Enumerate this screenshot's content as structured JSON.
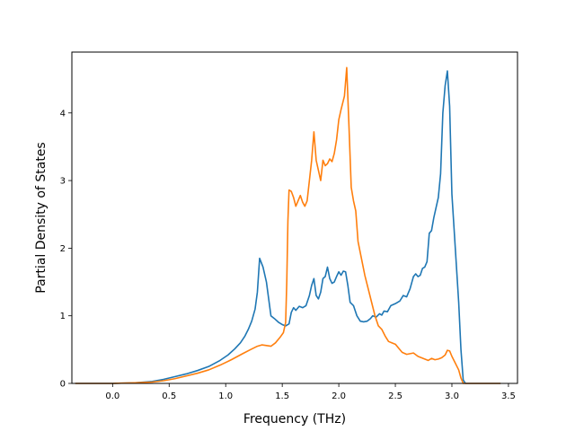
{
  "chart_data": {
    "type": "line",
    "xlabel": "Frequency (THz)",
    "ylabel": "Partial Density of States",
    "xlim": [
      -0.36,
      3.58
    ],
    "ylim": [
      0,
      4.9
    ],
    "xticks": [
      0.0,
      0.5,
      1.0,
      1.5,
      2.0,
      2.5,
      3.0,
      3.5
    ],
    "xtick_labels": [
      "0.0",
      "0.5",
      "1.0",
      "1.5",
      "2.0",
      "2.5",
      "3.0",
      "3.5"
    ],
    "yticks": [
      0,
      1,
      2,
      3,
      4
    ],
    "ytick_labels": [
      "0",
      "1",
      "2",
      "3",
      "4"
    ],
    "grid": false,
    "legend": "none",
    "series": [
      {
        "color": "#1f77b4",
        "points": [
          [
            -0.33,
            0.0
          ],
          [
            0.0,
            0.0
          ],
          [
            0.2,
            0.01
          ],
          [
            0.35,
            0.03
          ],
          [
            0.45,
            0.06
          ],
          [
            0.55,
            0.1
          ],
          [
            0.65,
            0.14
          ],
          [
            0.75,
            0.19
          ],
          [
            0.85,
            0.25
          ],
          [
            0.95,
            0.34
          ],
          [
            1.02,
            0.42
          ],
          [
            1.08,
            0.51
          ],
          [
            1.13,
            0.6
          ],
          [
            1.17,
            0.7
          ],
          [
            1.2,
            0.8
          ],
          [
            1.23,
            0.92
          ],
          [
            1.26,
            1.1
          ],
          [
            1.28,
            1.35
          ],
          [
            1.3,
            1.85
          ],
          [
            1.33,
            1.72
          ],
          [
            1.36,
            1.5
          ],
          [
            1.38,
            1.25
          ],
          [
            1.4,
            1.0
          ],
          [
            1.43,
            0.96
          ],
          [
            1.47,
            0.9
          ],
          [
            1.5,
            0.87
          ],
          [
            1.53,
            0.85
          ],
          [
            1.56,
            0.88
          ],
          [
            1.58,
            1.05
          ],
          [
            1.6,
            1.12
          ],
          [
            1.62,
            1.08
          ],
          [
            1.65,
            1.14
          ],
          [
            1.68,
            1.12
          ],
          [
            1.71,
            1.15
          ],
          [
            1.74,
            1.3
          ],
          [
            1.76,
            1.45
          ],
          [
            1.78,
            1.55
          ],
          [
            1.8,
            1.3
          ],
          [
            1.82,
            1.25
          ],
          [
            1.84,
            1.35
          ],
          [
            1.86,
            1.55
          ],
          [
            1.88,
            1.58
          ],
          [
            1.9,
            1.72
          ],
          [
            1.92,
            1.55
          ],
          [
            1.94,
            1.48
          ],
          [
            1.96,
            1.5
          ],
          [
            1.98,
            1.58
          ],
          [
            2.0,
            1.65
          ],
          [
            2.02,
            1.6
          ],
          [
            2.04,
            1.66
          ],
          [
            2.06,
            1.65
          ],
          [
            2.08,
            1.45
          ],
          [
            2.1,
            1.2
          ],
          [
            2.13,
            1.15
          ],
          [
            2.16,
            1.0
          ],
          [
            2.19,
            0.92
          ],
          [
            2.22,
            0.91
          ],
          [
            2.25,
            0.92
          ],
          [
            2.28,
            0.96
          ],
          [
            2.3,
            1.0
          ],
          [
            2.33,
            0.98
          ],
          [
            2.36,
            1.03
          ],
          [
            2.38,
            1.01
          ],
          [
            2.4,
            1.07
          ],
          [
            2.43,
            1.06
          ],
          [
            2.46,
            1.15
          ],
          [
            2.5,
            1.18
          ],
          [
            2.54,
            1.22
          ],
          [
            2.57,
            1.3
          ],
          [
            2.6,
            1.28
          ],
          [
            2.63,
            1.4
          ],
          [
            2.66,
            1.58
          ],
          [
            2.68,
            1.62
          ],
          [
            2.7,
            1.58
          ],
          [
            2.72,
            1.6
          ],
          [
            2.74,
            1.7
          ],
          [
            2.76,
            1.72
          ],
          [
            2.78,
            1.8
          ],
          [
            2.8,
            2.22
          ],
          [
            2.82,
            2.26
          ],
          [
            2.84,
            2.45
          ],
          [
            2.86,
            2.6
          ],
          [
            2.88,
            2.75
          ],
          [
            2.9,
            3.1
          ],
          [
            2.92,
            4.0
          ],
          [
            2.94,
            4.4
          ],
          [
            2.96,
            4.62
          ],
          [
            2.98,
            4.1
          ],
          [
            3.0,
            2.8
          ],
          [
            3.03,
            2.0
          ],
          [
            3.06,
            1.2
          ],
          [
            3.08,
            0.5
          ],
          [
            3.1,
            0.05
          ],
          [
            3.12,
            0.0
          ],
          [
            3.43,
            0.0
          ]
        ]
      },
      {
        "color": "#ff7f0e",
        "points": [
          [
            -0.33,
            0.0
          ],
          [
            0.0,
            0.0
          ],
          [
            0.2,
            0.01
          ],
          [
            0.35,
            0.02
          ],
          [
            0.45,
            0.04
          ],
          [
            0.55,
            0.07
          ],
          [
            0.65,
            0.11
          ],
          [
            0.75,
            0.15
          ],
          [
            0.85,
            0.2
          ],
          [
            0.95,
            0.27
          ],
          [
            1.05,
            0.35
          ],
          [
            1.15,
            0.44
          ],
          [
            1.22,
            0.5
          ],
          [
            1.28,
            0.55
          ],
          [
            1.32,
            0.57
          ],
          [
            1.36,
            0.56
          ],
          [
            1.4,
            0.55
          ],
          [
            1.44,
            0.6
          ],
          [
            1.48,
            0.68
          ],
          [
            1.51,
            0.75
          ],
          [
            1.53,
            0.9
          ],
          [
            1.54,
            1.5
          ],
          [
            1.55,
            2.4
          ],
          [
            1.56,
            2.86
          ],
          [
            1.58,
            2.84
          ],
          [
            1.6,
            2.75
          ],
          [
            1.62,
            2.62
          ],
          [
            1.64,
            2.7
          ],
          [
            1.66,
            2.78
          ],
          [
            1.68,
            2.68
          ],
          [
            1.7,
            2.62
          ],
          [
            1.72,
            2.7
          ],
          [
            1.74,
            3.0
          ],
          [
            1.76,
            3.3
          ],
          [
            1.78,
            3.72
          ],
          [
            1.8,
            3.3
          ],
          [
            1.82,
            3.15
          ],
          [
            1.84,
            3.0
          ],
          [
            1.86,
            3.3
          ],
          [
            1.88,
            3.22
          ],
          [
            1.9,
            3.25
          ],
          [
            1.92,
            3.32
          ],
          [
            1.94,
            3.28
          ],
          [
            1.96,
            3.4
          ],
          [
            1.98,
            3.6
          ],
          [
            2.0,
            3.9
          ],
          [
            2.02,
            4.05
          ],
          [
            2.05,
            4.25
          ],
          [
            2.07,
            4.67
          ],
          [
            2.09,
            3.8
          ],
          [
            2.11,
            2.9
          ],
          [
            2.13,
            2.7
          ],
          [
            2.15,
            2.55
          ],
          [
            2.17,
            2.1
          ],
          [
            2.2,
            1.85
          ],
          [
            2.23,
            1.6
          ],
          [
            2.26,
            1.4
          ],
          [
            2.29,
            1.2
          ],
          [
            2.32,
            1.0
          ],
          [
            2.35,
            0.85
          ],
          [
            2.38,
            0.8
          ],
          [
            2.41,
            0.7
          ],
          [
            2.44,
            0.62
          ],
          [
            2.47,
            0.6
          ],
          [
            2.5,
            0.58
          ],
          [
            2.53,
            0.52
          ],
          [
            2.56,
            0.46
          ],
          [
            2.6,
            0.43
          ],
          [
            2.63,
            0.44
          ],
          [
            2.66,
            0.45
          ],
          [
            2.7,
            0.4
          ],
          [
            2.73,
            0.38
          ],
          [
            2.76,
            0.36
          ],
          [
            2.79,
            0.34
          ],
          [
            2.82,
            0.37
          ],
          [
            2.85,
            0.35
          ],
          [
            2.88,
            0.36
          ],
          [
            2.91,
            0.38
          ],
          [
            2.94,
            0.42
          ],
          [
            2.96,
            0.49
          ],
          [
            2.98,
            0.48
          ],
          [
            3.0,
            0.4
          ],
          [
            3.03,
            0.3
          ],
          [
            3.06,
            0.2
          ],
          [
            3.08,
            0.08
          ],
          [
            3.1,
            0.0
          ],
          [
            3.43,
            0.0
          ]
        ]
      }
    ]
  }
}
